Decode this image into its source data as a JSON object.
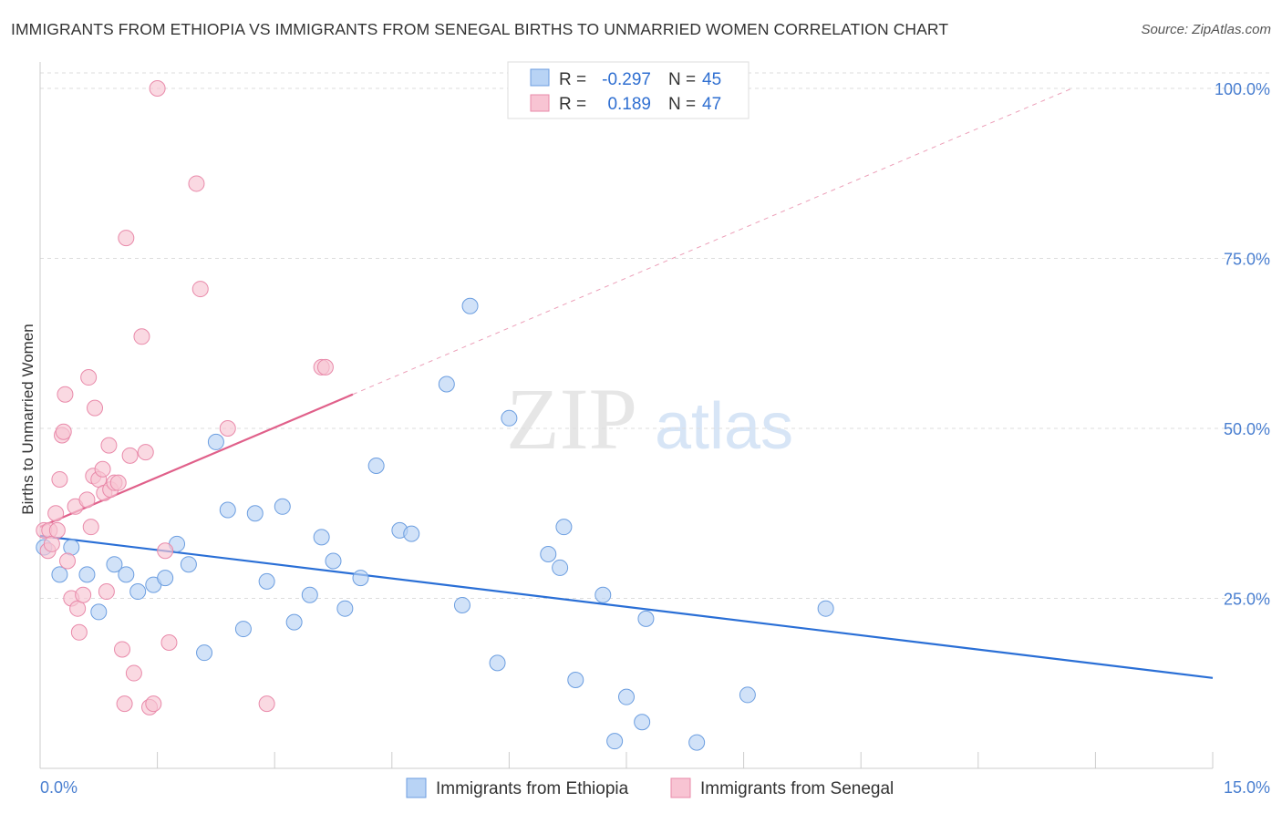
{
  "title": "IMMIGRANTS FROM ETHIOPIA VS IMMIGRANTS FROM SENEGAL BIRTHS TO UNMARRIED WOMEN CORRELATION CHART",
  "source": "Source: ZipAtlas.com",
  "watermark": {
    "zip": "ZIP",
    "atlas": "atlas"
  },
  "colors": {
    "ethiopia_fill": "#b8d3f5",
    "ethiopia_stroke": "#6c9ee0",
    "ethiopia_line": "#2a6fd6",
    "senegal_fill": "#f8c4d3",
    "senegal_stroke": "#e98aaa",
    "senegal_line": "#e0608a",
    "tick_color": "#4a7fd0",
    "grid": "#dddddd"
  },
  "legend": {
    "row1": {
      "r_label": "R =",
      "r_value": "-0.297",
      "n_label": "N =",
      "n_value": "45"
    },
    "row2": {
      "r_label": "R =",
      "r_value": "0.189",
      "n_label": "N =",
      "n_value": "47"
    }
  },
  "chart_data": {
    "type": "scatter",
    "title": "IMMIGRANTS FROM ETHIOPIA VS IMMIGRANTS FROM SENEGAL BIRTHS TO UNMARRIED WOMEN CORRELATION CHART",
    "xlabel": "",
    "ylabel": "Births to Unmarried Women",
    "xlim": [
      0,
      15
    ],
    "ylim": [
      0,
      102
    ],
    "x_tick_labels": [
      "0.0%",
      "15.0%"
    ],
    "y_ticks": [
      25,
      50,
      75,
      100
    ],
    "y_tick_labels": [
      "25.0%",
      "50.0%",
      "75.0%",
      "100.0%"
    ],
    "grid": true,
    "series": [
      {
        "name": "Immigrants from Ethiopia",
        "R": -0.297,
        "N": 45,
        "trend": {
          "x0": 0,
          "y0": 34.2,
          "x1": 15,
          "y1": 13.3,
          "dashed_to": null
        },
        "points": [
          [
            0.05,
            32.5
          ],
          [
            0.25,
            28.5
          ],
          [
            0.4,
            32.5
          ],
          [
            0.6,
            28.5
          ],
          [
            0.75,
            23
          ],
          [
            0.95,
            30
          ],
          [
            1.1,
            28.5
          ],
          [
            1.25,
            26
          ],
          [
            1.45,
            27
          ],
          [
            1.6,
            28
          ],
          [
            1.75,
            33
          ],
          [
            1.9,
            30
          ],
          [
            2.1,
            17
          ],
          [
            2.25,
            48
          ],
          [
            2.4,
            38
          ],
          [
            2.6,
            20.5
          ],
          [
            2.75,
            37.5
          ],
          [
            2.9,
            27.5
          ],
          [
            3.1,
            38.5
          ],
          [
            3.25,
            21.5
          ],
          [
            3.45,
            25.5
          ],
          [
            3.6,
            34
          ],
          [
            3.75,
            30.5
          ],
          [
            3.9,
            23.5
          ],
          [
            4.1,
            28
          ],
          [
            4.3,
            44.5
          ],
          [
            4.6,
            35
          ],
          [
            4.75,
            34.5
          ],
          [
            5.2,
            56.5
          ],
          [
            5.4,
            24
          ],
          [
            5.5,
            68
          ],
          [
            5.85,
            15.5
          ],
          [
            6.0,
            51.5
          ],
          [
            6.5,
            31.5
          ],
          [
            6.65,
            29.5
          ],
          [
            6.7,
            35.5
          ],
          [
            6.85,
            13
          ],
          [
            7.2,
            25.5
          ],
          [
            7.35,
            4
          ],
          [
            7.5,
            10.5
          ],
          [
            7.7,
            6.8
          ],
          [
            7.75,
            22
          ],
          [
            8.4,
            3.8
          ],
          [
            9.05,
            10.8
          ],
          [
            10.05,
            23.5
          ]
        ]
      },
      {
        "name": "Immigrants from Senegal",
        "R": 0.189,
        "N": 47,
        "trend": {
          "x0": 0,
          "y0": 35.5,
          "x1": 4.0,
          "y1": 55.0,
          "dashed_to": [
            13.2,
            100
          ]
        },
        "points": [
          [
            0.05,
            35
          ],
          [
            0.1,
            32
          ],
          [
            0.12,
            35
          ],
          [
            0.15,
            33
          ],
          [
            0.2,
            37.5
          ],
          [
            0.22,
            35
          ],
          [
            0.25,
            42.5
          ],
          [
            0.28,
            49
          ],
          [
            0.3,
            49.5
          ],
          [
            0.32,
            55
          ],
          [
            0.35,
            30.5
          ],
          [
            0.4,
            25
          ],
          [
            0.45,
            38.5
          ],
          [
            0.48,
            23.5
          ],
          [
            0.5,
            20
          ],
          [
            0.55,
            25.5
          ],
          [
            0.6,
            39.5
          ],
          [
            0.62,
            57.5
          ],
          [
            0.65,
            35.5
          ],
          [
            0.68,
            43
          ],
          [
            0.7,
            53
          ],
          [
            0.75,
            42.5
          ],
          [
            0.8,
            44
          ],
          [
            0.82,
            40.5
          ],
          [
            0.85,
            26
          ],
          [
            0.88,
            47.5
          ],
          [
            0.9,
            41
          ],
          [
            0.95,
            42
          ],
          [
            1.0,
            42
          ],
          [
            1.05,
            17.5
          ],
          [
            1.08,
            9.5
          ],
          [
            1.1,
            78
          ],
          [
            1.15,
            46
          ],
          [
            1.2,
            14
          ],
          [
            1.3,
            63.5
          ],
          [
            1.35,
            46.5
          ],
          [
            1.4,
            9
          ],
          [
            1.45,
            9.5
          ],
          [
            1.5,
            100
          ],
          [
            1.6,
            32
          ],
          [
            1.65,
            18.5
          ],
          [
            2.0,
            86
          ],
          [
            2.05,
            70.5
          ],
          [
            2.4,
            50
          ],
          [
            2.9,
            9.5
          ],
          [
            3.6,
            59
          ],
          [
            3.65,
            59
          ]
        ]
      }
    ]
  },
  "bottom_legend": {
    "ethiopia": "Immigrants from Ethiopia",
    "senegal": "Immigrants from Senegal"
  }
}
